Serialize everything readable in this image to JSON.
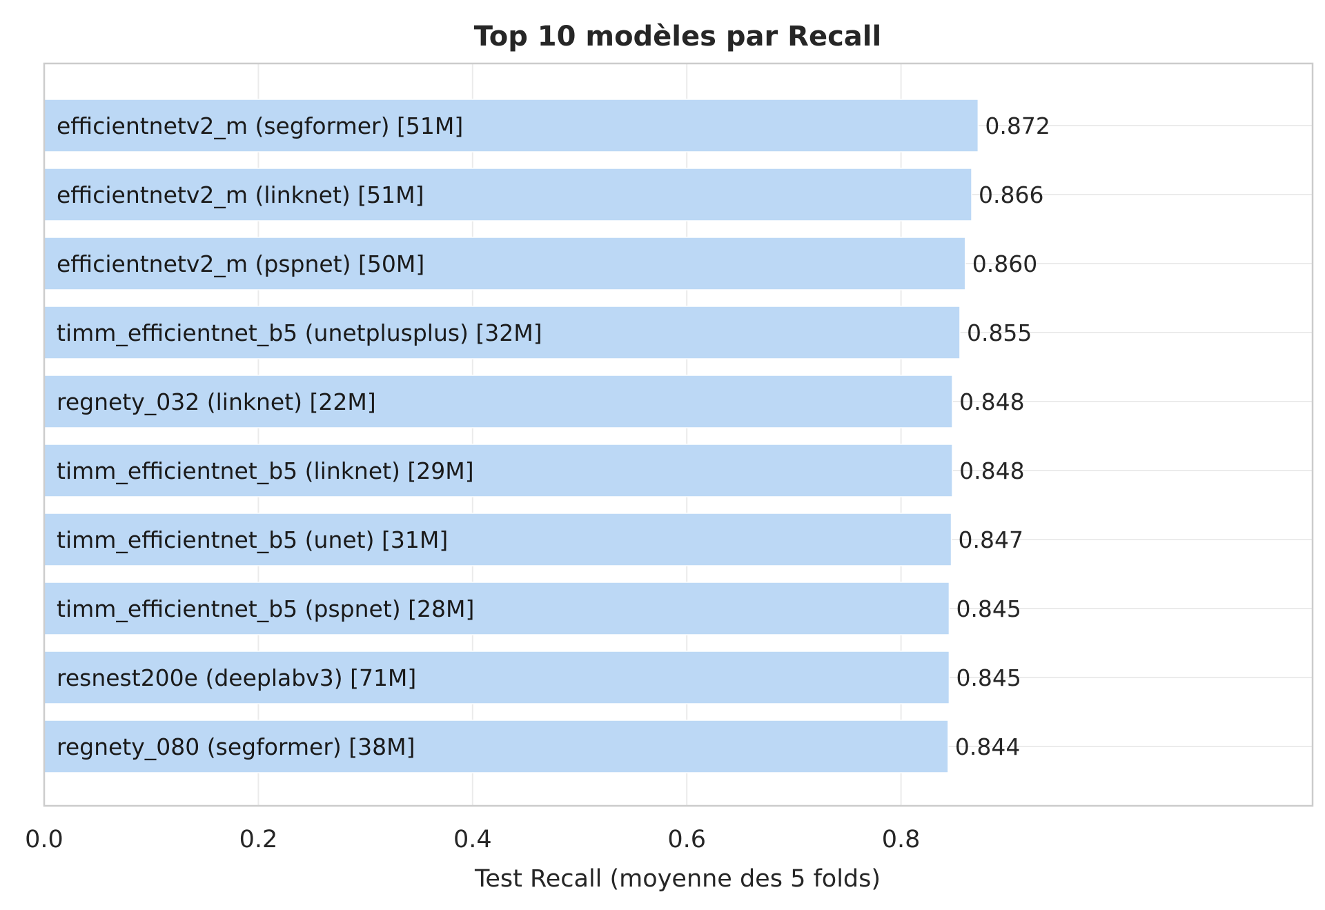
{
  "chart_data": {
    "type": "bar",
    "orientation": "horizontal",
    "title": "Top 10 modèles par Recall",
    "xlabel": "Test Recall (moyenne des 5 folds)",
    "ylabel": "",
    "xlim": [
      0,
      0.96
    ],
    "xticks": [
      "0.0",
      "0.2",
      "0.4",
      "0.6",
      "0.8"
    ],
    "grid": true,
    "bar_color": "#bcd8f5",
    "categories": [
      "efficientnetv2_m (segformer) [51M]",
      "efficientnetv2_m (linknet) [51M]",
      "efficientnetv2_m (pspnet) [50M]",
      "timm_efficientnet_b5 (unetplusplus) [32M]",
      "regnety_032 (linknet) [22M]",
      "timm_efficientnet_b5 (linknet) [29M]",
      "timm_efficientnet_b5 (unet) [31M]",
      "timm_efficientnet_b5 (pspnet) [28M]",
      "resnest200e (deeplabv3) [71M]",
      "regnety_080 (segformer) [38M]"
    ],
    "values": [
      0.872,
      0.866,
      0.86,
      0.855,
      0.848,
      0.848,
      0.847,
      0.845,
      0.845,
      0.844
    ],
    "value_labels": [
      "0.872",
      "0.866",
      "0.860",
      "0.855",
      "0.848",
      "0.848",
      "0.847",
      "0.845",
      "0.845",
      "0.844"
    ]
  }
}
